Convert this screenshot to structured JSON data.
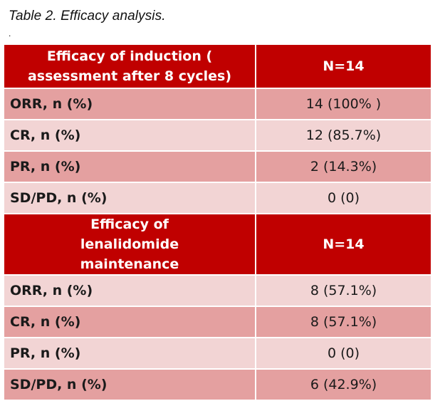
{
  "caption": "Table 2. Efficacy analysis.",
  "caption_mark": ".",
  "colors": {
    "header_bg": "#c00000",
    "row_dark": "#e4a0a0",
    "row_light": "#f2d4d4"
  },
  "induction": {
    "header_label": "Efficacy of induction ( assessment after 8 cycles)",
    "header_n": "N=14",
    "rows": [
      {
        "label": "ORR, n (%)",
        "value": "14 (100% )"
      },
      {
        "label": "CR, n (%)",
        "value": "12 (85.7%)"
      },
      {
        "label": "PR, n (%)",
        "value": "2 (14.3%)"
      },
      {
        "label": "SD/PD, n (%)",
        "value": "0 (0)"
      }
    ]
  },
  "maintenance": {
    "header_label": "Efficacy of lenalidomide maintenance",
    "header_n": "N=14",
    "rows": [
      {
        "label": "ORR, n (%)",
        "value": "8 (57.1%)"
      },
      {
        "label": "CR, n (%)",
        "value": "8 (57.1%)"
      },
      {
        "label": "PR, n (%)",
        "value": "0 (0)"
      },
      {
        "label": "SD/PD, n (%)",
        "value": "6 (42.9%)"
      }
    ]
  }
}
